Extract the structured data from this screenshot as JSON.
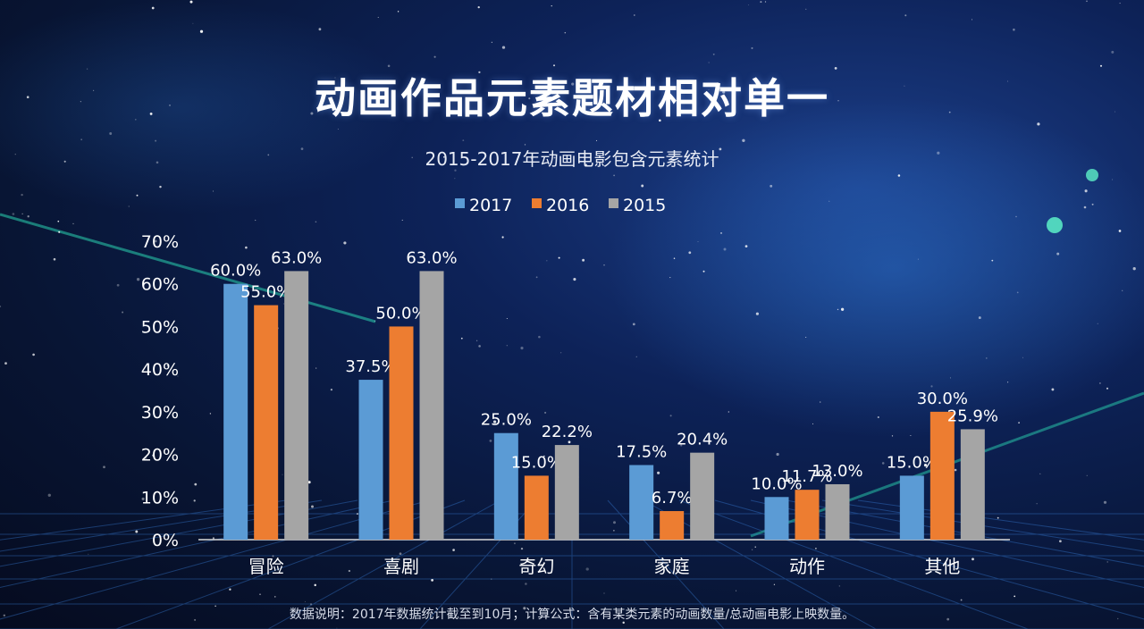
{
  "title": "动画作品元素题材相对单一",
  "footnote": "数据说明：2017年数据统计截至到10月；计算公式：含有某类元素的动画数量/总动画电影上映数量。",
  "chart_data": {
    "type": "bar",
    "title": "2015-2017年动画电影包含元素统计",
    "categories": [
      "冒险",
      "喜剧",
      "奇幻",
      "家庭",
      "动作",
      "其他"
    ],
    "series": [
      {
        "name": "2017",
        "color": "#5b9bd5",
        "values": [
          60.0,
          37.5,
          25.0,
          17.5,
          10.0,
          15.0
        ],
        "labels": [
          "60.0%",
          "37.5%",
          "25.0%",
          "17.5%",
          "10.0%",
          "15.0%"
        ]
      },
      {
        "name": "2016",
        "color": "#ed7d31",
        "values": [
          55.0,
          50.0,
          15.0,
          6.7,
          11.7,
          30.0
        ],
        "labels": [
          "55.0%",
          "50.0%",
          "15.0%",
          "6.7%",
          "11.7%",
          "30.0%"
        ]
      },
      {
        "name": "2015",
        "color": "#a5a5a5",
        "values": [
          63.0,
          63.0,
          22.2,
          20.4,
          13.0,
          25.9
        ],
        "labels": [
          "63.0%",
          "63.0%",
          "22.2%",
          "20.4%",
          "13.0%",
          "25.9%"
        ]
      }
    ],
    "ylim": [
      0,
      70
    ],
    "yticks": [
      "0%",
      "10%",
      "20%",
      "30%",
      "40%",
      "50%",
      "60%",
      "70%"
    ],
    "grid": false,
    "legend": "top-center"
  }
}
